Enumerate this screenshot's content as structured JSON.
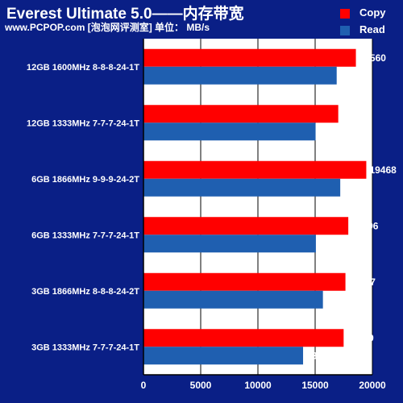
{
  "chart_data": {
    "type": "bar",
    "orientation": "horizontal",
    "title": "Everest Ultimate 5.0——内存带宽",
    "subtitle": "www.PCPOP.com [泡泡网评测室] 单位： MB/s",
    "categories": [
      "12GB 1600MHz 8-8-8-24-1T",
      "12GB 1333MHz 7-7-7-24-1T",
      "6GB 1866MHz 9-9-9-24-2T",
      "6GB 1333MHz 7-7-7-24-1T",
      "3GB 1866MHz 8-8-8-24-2T",
      "3GB 1333MHz 7-7-7-24-1T"
    ],
    "series": [
      {
        "name": "Copy",
        "color": "#ff0000",
        "values": [
          18560,
          17019,
          19468,
          17896,
          17647,
          17489
        ]
      },
      {
        "name": "Read",
        "color": "#1f5fb0",
        "values": [
          16882,
          15039,
          17193,
          15065,
          15680,
          13946
        ]
      }
    ],
    "xlim": [
      0,
      20000
    ],
    "xticks": [
      0,
      5000,
      10000,
      15000,
      20000
    ],
    "grid": true,
    "legend_position": "top-right",
    "colors": {
      "background": "#0a1f86",
      "plot_background": "#ffffff",
      "grid": "#000000"
    }
  }
}
